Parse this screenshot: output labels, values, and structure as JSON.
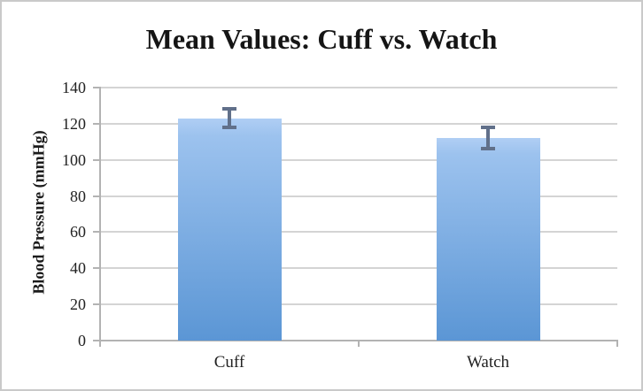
{
  "chart_data": {
    "type": "bar",
    "title": "Mean Values: Cuff vs. Watch",
    "xlabel": "",
    "ylabel": "Blood Pressure (mmHg)",
    "categories": [
      "Cuff",
      "Watch"
    ],
    "values": [
      123,
      112
    ],
    "error_bars": [
      6,
      7
    ],
    "ylim": [
      0,
      140
    ],
    "yticks": [
      0,
      20,
      40,
      60,
      80,
      100,
      120,
      140
    ],
    "grid": true,
    "legend": "none",
    "colors": {
      "bar_gradient_top": "#b0cef4",
      "bar_gradient_mid": "#9cc2ee",
      "bar_gradient_bottom": "#5b96d5",
      "error_bar": "#61708a",
      "gridline": "#d4d4d4",
      "axis": "#b3b3b3",
      "title_text": "#151515",
      "tick_text": "#222222",
      "frame_border": "#c9c9c9",
      "background": "#ffffff"
    }
  }
}
